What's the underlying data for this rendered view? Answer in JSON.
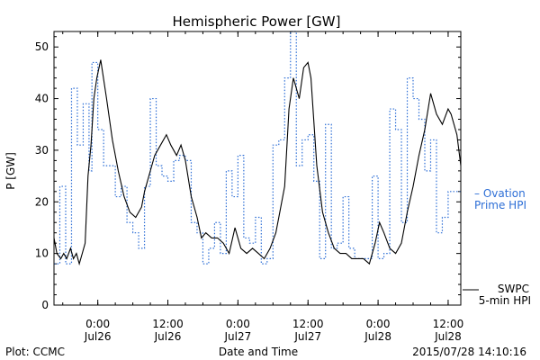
{
  "chart_data": {
    "type": "line",
    "title": "Hemispheric Power [GW]",
    "ylabel": "P [GW]",
    "xlabel": "Date and Time",
    "ylim": [
      0,
      53
    ],
    "yticks": [
      0,
      10,
      20,
      30,
      40,
      50
    ],
    "xlim": [
      "2015-07-25T16:30",
      "2015-07-28T14:10"
    ],
    "xticks": [
      {
        "x": "2015-07-26T00:00",
        "label": "0:00",
        "sublabel": "Jul26"
      },
      {
        "x": "2015-07-26T12:00",
        "label": "12:00",
        "sublabel": "Jul26"
      },
      {
        "x": "2015-07-27T00:00",
        "label": "0:00",
        "sublabel": "Jul27"
      },
      {
        "x": "2015-07-27T12:00",
        "label": "12:00",
        "sublabel": "Jul27"
      },
      {
        "x": "2015-07-28T00:00",
        "label": "0:00",
        "sublabel": "Jul28"
      },
      {
        "x": "2015-07-28T12:00",
        "label": "12:00",
        "sublabel": "Jul28"
      }
    ],
    "series": [
      {
        "name": "Ovation Prime HPI",
        "style": "dotted-step",
        "color": "#2e6fd6",
        "x": [
          "2015-07-25T16:30",
          "2015-07-25T17:30",
          "2015-07-25T18:30",
          "2015-07-25T19:30",
          "2015-07-25T20:30",
          "2015-07-25T21:30",
          "2015-07-25T22:30",
          "2015-07-25T23:00",
          "2015-07-26T00:00",
          "2015-07-26T01:00",
          "2015-07-26T02:00",
          "2015-07-26T03:00",
          "2015-07-26T04:00",
          "2015-07-26T05:00",
          "2015-07-26T06:00",
          "2015-07-26T07:00",
          "2015-07-26T08:00",
          "2015-07-26T09:00",
          "2015-07-26T10:00",
          "2015-07-26T11:00",
          "2015-07-26T12:00",
          "2015-07-26T13:00",
          "2015-07-26T14:00",
          "2015-07-26T15:00",
          "2015-07-26T16:00",
          "2015-07-26T17:00",
          "2015-07-26T18:00",
          "2015-07-26T19:00",
          "2015-07-26T20:00",
          "2015-07-26T21:00",
          "2015-07-26T22:00",
          "2015-07-26T23:00",
          "2015-07-27T00:00",
          "2015-07-27T01:00",
          "2015-07-27T02:00",
          "2015-07-27T03:00",
          "2015-07-27T04:00",
          "2015-07-27T05:00",
          "2015-07-27T06:00",
          "2015-07-27T07:00",
          "2015-07-27T08:00",
          "2015-07-27T09:00",
          "2015-07-27T10:00",
          "2015-07-27T11:00",
          "2015-07-27T12:00",
          "2015-07-27T13:00",
          "2015-07-27T14:00",
          "2015-07-27T15:00",
          "2015-07-27T16:00",
          "2015-07-27T17:00",
          "2015-07-27T18:00",
          "2015-07-27T19:00",
          "2015-07-27T20:00",
          "2015-07-27T21:00",
          "2015-07-27T22:00",
          "2015-07-27T23:00",
          "2015-07-28T00:00",
          "2015-07-28T01:00",
          "2015-07-28T02:00",
          "2015-07-28T03:00",
          "2015-07-28T04:00",
          "2015-07-28T05:00",
          "2015-07-28T06:00",
          "2015-07-28T07:00",
          "2015-07-28T08:00",
          "2015-07-28T09:00",
          "2015-07-28T10:00",
          "2015-07-28T11:00",
          "2015-07-28T12:00",
          "2015-07-28T13:00",
          "2015-07-28T14:00"
        ],
        "y": [
          8,
          23,
          8,
          42,
          31,
          39,
          26,
          47,
          34,
          27,
          27,
          21,
          23,
          16,
          14,
          11,
          23,
          40,
          27,
          25,
          24,
          28,
          29,
          28,
          16,
          14,
          8,
          11,
          16,
          10,
          26,
          21,
          29,
          13,
          12,
          17,
          8,
          9,
          31,
          32,
          44,
          53,
          27,
          32,
          33,
          24,
          9,
          35,
          11,
          12,
          21,
          11,
          9,
          9,
          9,
          25,
          9,
          10,
          38,
          34,
          16,
          44,
          40,
          36,
          26,
          32,
          14,
          17,
          22,
          22,
          22
        ]
      },
      {
        "name": "SWPC 5-min HPI",
        "style": "solid",
        "color": "#000000",
        "x": [
          "2015-07-25T16:30",
          "2015-07-25T17:00",
          "2015-07-25T17:40",
          "2015-07-25T18:10",
          "2015-07-25T18:40",
          "2015-07-25T19:20",
          "2015-07-25T19:50",
          "2015-07-25T20:20",
          "2015-07-25T20:50",
          "2015-07-25T21:20",
          "2015-07-25T21:50",
          "2015-07-25T22:20",
          "2015-07-25T22:50",
          "2015-07-25T23:20",
          "2015-07-25T23:50",
          "2015-07-26T00:30",
          "2015-07-26T01:30",
          "2015-07-26T02:30",
          "2015-07-26T03:30",
          "2015-07-26T04:30",
          "2015-07-26T05:30",
          "2015-07-26T06:30",
          "2015-07-26T07:30",
          "2015-07-26T08:00",
          "2015-07-26T08:45",
          "2015-07-26T09:45",
          "2015-07-26T10:45",
          "2015-07-26T11:45",
          "2015-07-26T12:30",
          "2015-07-26T13:30",
          "2015-07-26T14:15",
          "2015-07-26T15:00",
          "2015-07-26T16:00",
          "2015-07-26T17:00",
          "2015-07-26T17:45",
          "2015-07-26T18:30",
          "2015-07-26T19:30",
          "2015-07-26T20:30",
          "2015-07-26T21:30",
          "2015-07-26T22:30",
          "2015-07-26T23:30",
          "2015-07-27T00:30",
          "2015-07-27T01:30",
          "2015-07-27T02:30",
          "2015-07-27T03:30",
          "2015-07-27T04:30",
          "2015-07-27T05:30",
          "2015-07-27T06:30",
          "2015-07-27T07:00",
          "2015-07-27T08:00",
          "2015-07-27T08:45",
          "2015-07-27T09:30",
          "2015-07-27T10:30",
          "2015-07-27T11:15",
          "2015-07-27T12:00",
          "2015-07-27T12:30",
          "2015-07-27T13:30",
          "2015-07-27T14:30",
          "2015-07-27T15:30",
          "2015-07-27T16:30",
          "2015-07-27T17:30",
          "2015-07-27T18:30",
          "2015-07-27T19:30",
          "2015-07-27T20:30",
          "2015-07-27T21:30",
          "2015-07-27T22:30",
          "2015-07-27T23:30",
          "2015-07-28T00:15",
          "2015-07-28T01:00",
          "2015-07-28T02:00",
          "2015-07-28T03:00",
          "2015-07-28T04:00",
          "2015-07-28T05:00",
          "2015-07-28T06:00",
          "2015-07-28T07:00",
          "2015-07-28T08:00",
          "2015-07-28T09:00",
          "2015-07-28T10:00",
          "2015-07-28T11:00",
          "2015-07-28T12:00",
          "2015-07-28T12:30",
          "2015-07-28T13:30",
          "2015-07-28T14:10"
        ],
        "y": [
          13,
          10,
          9,
          10,
          9,
          11,
          9,
          10,
          8,
          10,
          12,
          25,
          31,
          40,
          44,
          47.5,
          40,
          32,
          26,
          21,
          18,
          17,
          19,
          22,
          25,
          29,
          31,
          33,
          31,
          29,
          31,
          28,
          21,
          17,
          13,
          14,
          13,
          13,
          12,
          10,
          15,
          11,
          10,
          11,
          10,
          9,
          11,
          14,
          17,
          23,
          38,
          44,
          40,
          46,
          47,
          44,
          27,
          18,
          14,
          11,
          10,
          10,
          9,
          9,
          9,
          8,
          12,
          16,
          14,
          11,
          10,
          12,
          18,
          23,
          29,
          34,
          41,
          37,
          35,
          38,
          37,
          33,
          27
        ]
      }
    ],
    "legend": [
      {
        "label": "– Ovation",
        "sublabel": "Prime HPI",
        "color": "#2e6fd6",
        "placement": "right"
      },
      {
        "label": "SWPC",
        "sublabel": "5-min HPI",
        "color": "#000000",
        "placement": "bottom-right"
      }
    ],
    "grid": false
  },
  "footer": {
    "plot_credit": "Plot: CCMC",
    "timestamp": "2015/07/28 14:10:16"
  }
}
